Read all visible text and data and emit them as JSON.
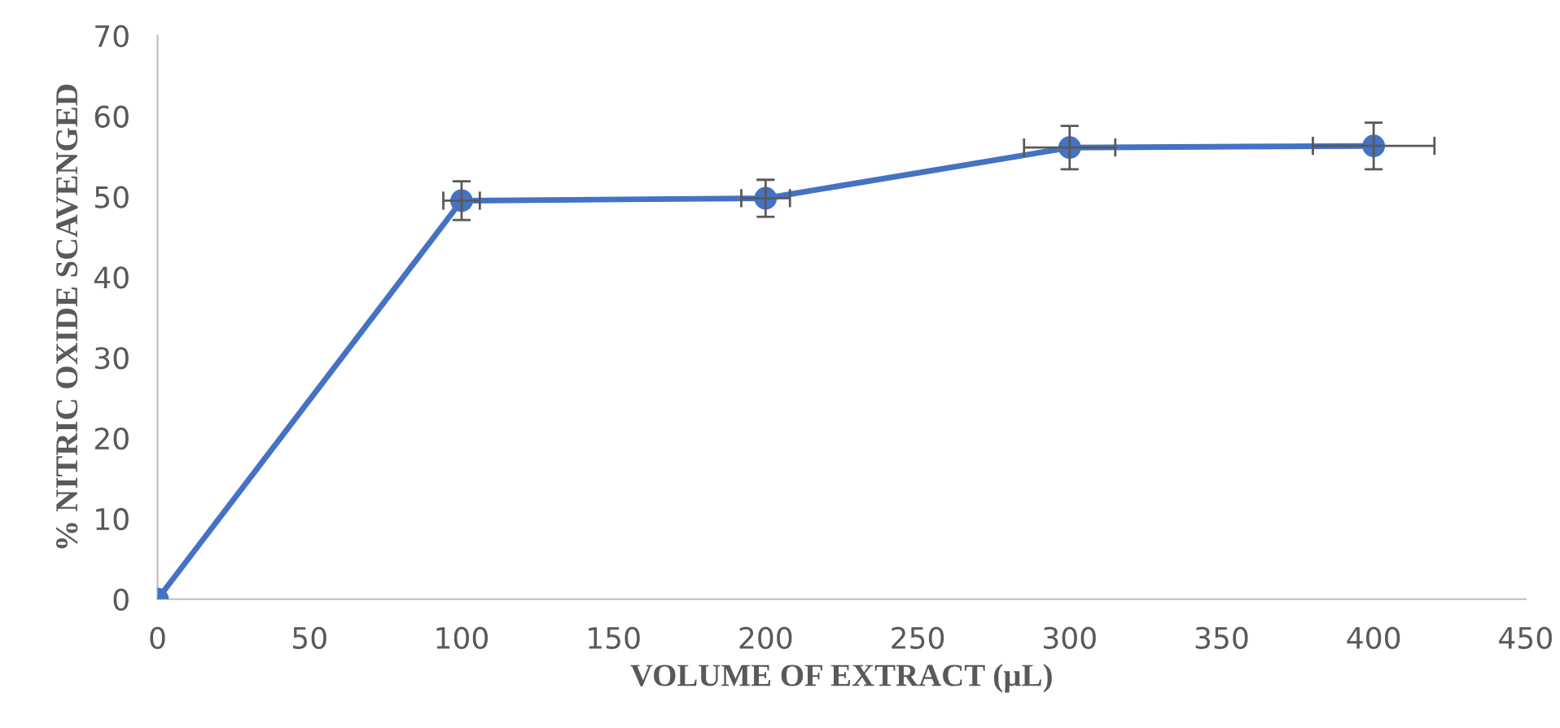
{
  "chart_data": {
    "type": "line",
    "xlabel": "VOLUME OF EXTRACT (µL)",
    "ylabel": "% NITRIC OXIDE SCAVENGED",
    "x": [
      0,
      100,
      200,
      300,
      400
    ],
    "series": [
      {
        "color": "#4472c4",
        "values": [
          0,
          49.5,
          49.8,
          56.1,
          56.3
        ],
        "errors": [
          null,
          2.4,
          2.3,
          2.7,
          2.9
        ],
        "xerrors": [
          null,
          6,
          8,
          15,
          20
        ]
      }
    ],
    "xlim": [
      0,
      450
    ],
    "xticks": [
      0,
      50,
      100,
      150,
      200,
      250,
      300,
      350,
      400,
      450
    ],
    "ylim": [
      0,
      70
    ],
    "yticks": [
      0,
      10,
      20,
      30,
      40,
      50,
      60,
      70
    ],
    "grid": false,
    "marker": "circle",
    "line_style": "solid"
  }
}
